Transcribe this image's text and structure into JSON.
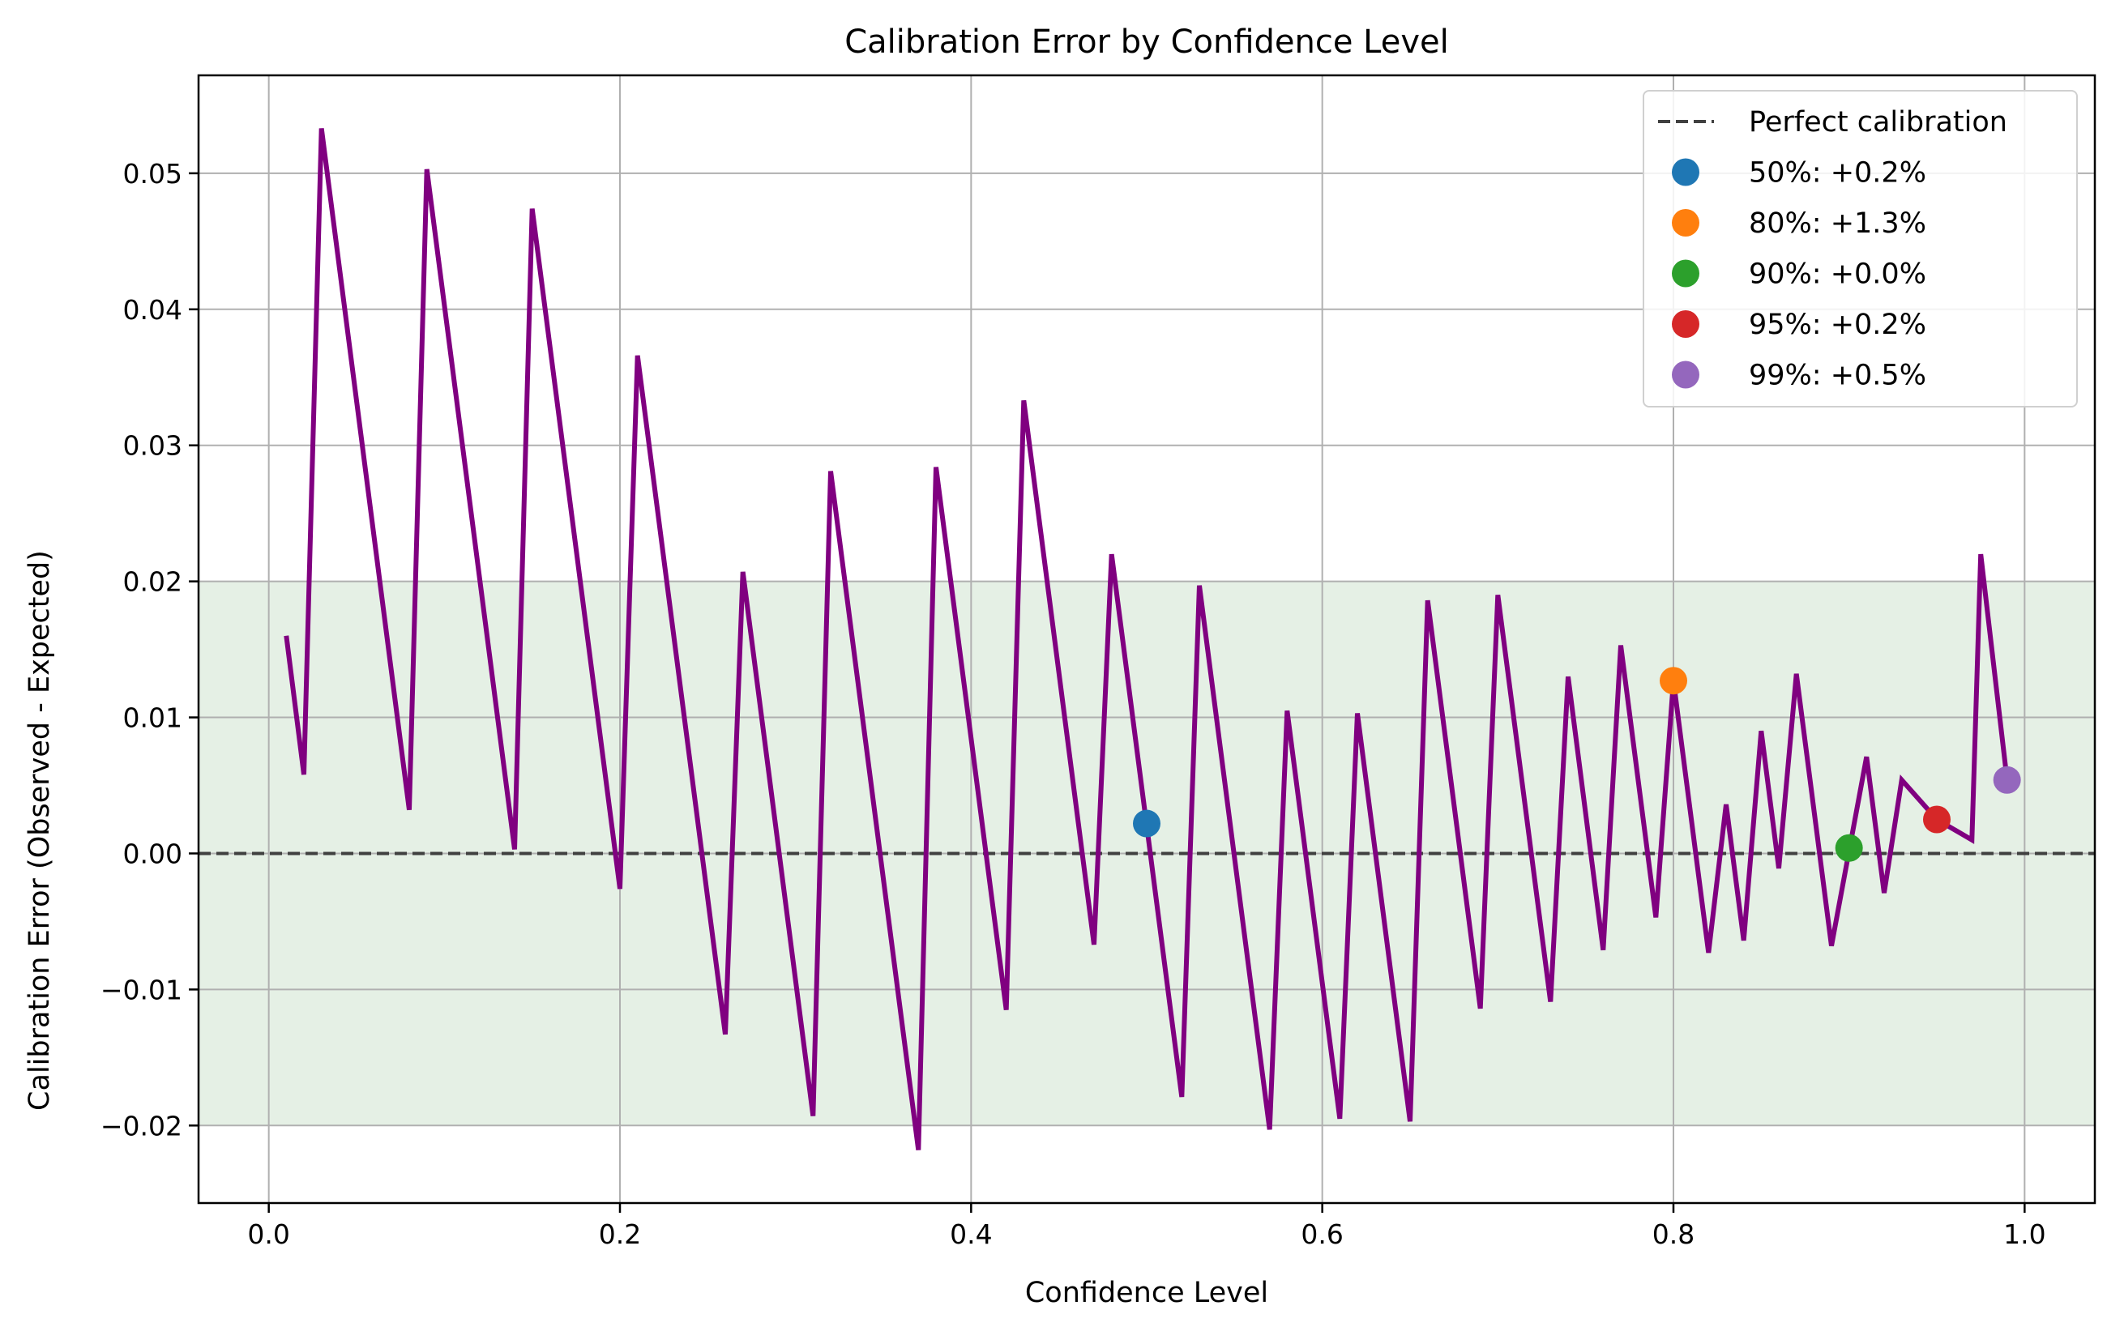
{
  "chart_data": {
    "type": "line",
    "title": "Calibration Error by Confidence Level",
    "xlabel": "Confidence Level",
    "ylabel": "Calibration Error (Observed - Expected)",
    "xlim": [
      -0.04,
      1.04
    ],
    "ylim": [
      -0.0257,
      0.0572
    ],
    "xticks": [
      0.0,
      0.2,
      0.4,
      0.6,
      0.8,
      1.0
    ],
    "xtick_labels": [
      "0.0",
      "0.2",
      "0.4",
      "0.6",
      "0.8",
      "1.0"
    ],
    "yticks": [
      -0.02,
      -0.01,
      0.0,
      0.01,
      0.02,
      0.03,
      0.04,
      0.05
    ],
    "ytick_labels": [
      "−0.02",
      "−0.01",
      "0.00",
      "0.01",
      "0.02",
      "0.03",
      "0.04",
      "0.05"
    ],
    "grid": true,
    "band": {
      "y_min": -0.02,
      "y_max": 0.02,
      "color": "#e5f0e5"
    },
    "reference_line": {
      "y": 0.0,
      "name": "Perfect calibration",
      "style": "dashed",
      "color": "#404040"
    },
    "series": [
      {
        "name": "calibration error",
        "color": "#800080",
        "x": [
          0.01,
          0.02,
          0.03,
          0.08,
          0.09,
          0.14,
          0.15,
          0.2,
          0.21,
          0.26,
          0.27,
          0.31,
          0.32,
          0.37,
          0.38,
          0.42,
          0.43,
          0.47,
          0.48,
          0.52,
          0.53,
          0.57,
          0.58,
          0.61,
          0.62,
          0.65,
          0.66,
          0.69,
          0.7,
          0.73,
          0.74,
          0.76,
          0.77,
          0.79,
          0.8,
          0.82,
          0.83,
          0.84,
          0.85,
          0.86,
          0.87,
          0.89,
          0.91,
          0.92,
          0.93,
          0.95,
          0.97,
          0.975,
          0.99
        ],
        "y": [
          0.016,
          0.0058,
          0.0533,
          0.0032,
          0.0503,
          0.0003,
          0.0474,
          -0.0026,
          0.0366,
          -0.0133,
          0.0207,
          -0.0193,
          0.0281,
          -0.0218,
          0.0284,
          -0.0115,
          0.0333,
          -0.0067,
          0.022,
          -0.0179,
          0.0197,
          -0.0203,
          0.0105,
          -0.0195,
          0.0103,
          -0.0197,
          0.0186,
          -0.0114,
          0.019,
          -0.0109,
          0.013,
          -0.0071,
          0.0153,
          -0.0047,
          0.0127,
          -0.0073,
          0.0036,
          -0.0064,
          0.009,
          -0.0011,
          0.0132,
          -0.0068,
          0.0071,
          -0.0029,
          0.0054,
          0.0025,
          0.001,
          0.022,
          0.0054
        ]
      }
    ],
    "markers": [
      {
        "label": "50%: +0.2%",
        "x": 0.5,
        "y": 0.0022,
        "color": "#1f77b4"
      },
      {
        "label": "80%: +1.3%",
        "x": 0.8,
        "y": 0.0127,
        "color": "#ff7f0e"
      },
      {
        "label": "90%: +0.0%",
        "x": 0.9,
        "y": 0.0004,
        "color": "#2ca02c"
      },
      {
        "label": "95%: +0.2%",
        "x": 0.95,
        "y": 0.0025,
        "color": "#d62728"
      },
      {
        "label": "99%: +0.5%",
        "x": 0.99,
        "y": 0.0054,
        "color": "#9467bd"
      }
    ],
    "legend": {
      "placement": "top-right"
    }
  }
}
